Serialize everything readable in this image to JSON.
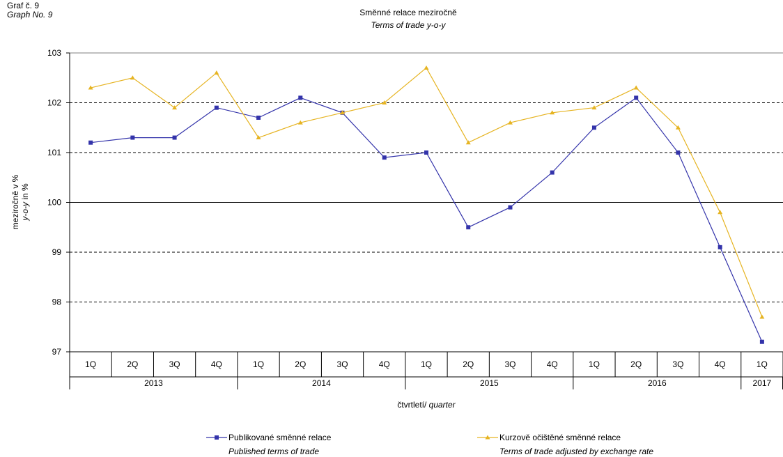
{
  "graph_label": {
    "cz": "Graf č. 9",
    "en": "Graph  No. 9"
  },
  "colors": {
    "published": "#3333aa",
    "adjusted": "#e6b422",
    "grid": "#000000"
  },
  "chart_data": {
    "type": "line",
    "title": "Směnné relace meziročně",
    "subtitle": "Terms of trade y-o-y",
    "ylabel_cz": "meziročně v %",
    "ylabel_en_prefix": "y-o-y",
    "ylabel_en_suffix": " in %",
    "xlabel_cz": "čtvrtletí/ ",
    "xlabel_en": "quarter",
    "ylim": [
      97,
      103
    ],
    "yticks": [
      97,
      98,
      99,
      100,
      101,
      102,
      103
    ],
    "grid": "dashed horizontal",
    "categories": [
      "1Q",
      "2Q",
      "3Q",
      "4Q",
      "1Q",
      "2Q",
      "3Q",
      "4Q",
      "1Q",
      "2Q",
      "3Q",
      "4Q",
      "1Q",
      "2Q",
      "3Q",
      "4Q",
      "1Q"
    ],
    "years": [
      {
        "label": "2013",
        "span": 4
      },
      {
        "label": "2014",
        "span": 4
      },
      {
        "label": "2015",
        "span": 4
      },
      {
        "label": "2016",
        "span": 4
      },
      {
        "label": "2017",
        "span": 1
      }
    ],
    "series": [
      {
        "name": "Publikované směnné relace",
        "name_en": "Published terms of trade",
        "marker": "square",
        "values": [
          101.2,
          101.3,
          101.3,
          101.9,
          101.7,
          102.1,
          101.8,
          100.9,
          101.0,
          99.5,
          99.9,
          100.6,
          101.5,
          102.1,
          101.0,
          99.1,
          97.2
        ]
      },
      {
        "name": "Kurzově očištěné směnné relace",
        "name_en": "Terms of trade adjusted by exchange rate",
        "marker": "triangle",
        "values": [
          102.3,
          102.5,
          101.9,
          102.6,
          101.3,
          101.6,
          101.8,
          102.0,
          102.7,
          101.2,
          101.6,
          101.8,
          101.9,
          102.3,
          101.5,
          99.8,
          97.7
        ]
      }
    ],
    "legend_position": "bottom"
  }
}
